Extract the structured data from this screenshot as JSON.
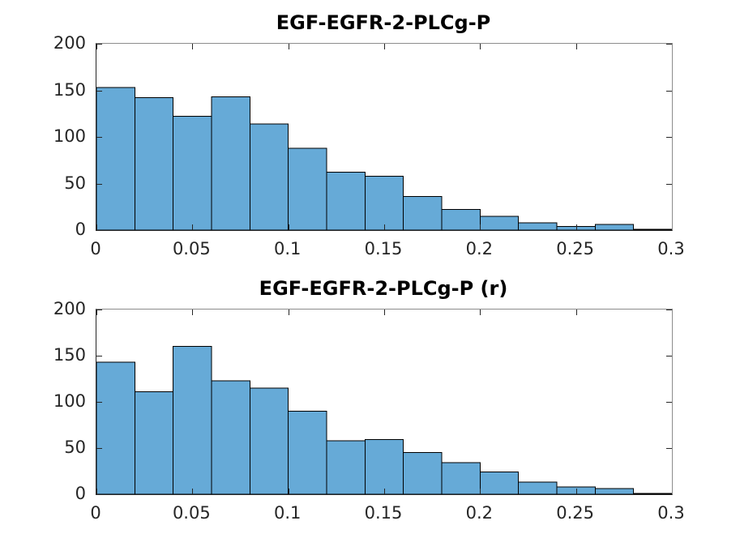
{
  "figure": {
    "background": "#ffffff",
    "bar_fill": "#66AAD7",
    "bar_edge": "#000000",
    "axis_dark": "#262626",
    "axis_light": "#8c8c8c",
    "tick_text_color": "#262626",
    "title_color": "#000000"
  },
  "chart_data": [
    {
      "type": "bar",
      "subtype": "histogram",
      "title": "EGF-EGFR-2-PLCg-P",
      "xlabel": "",
      "ylabel": "",
      "xlim": [
        0,
        0.3
      ],
      "ylim": [
        0,
        200
      ],
      "bin_start": 0,
      "bin_width": 0.02,
      "values": [
        153,
        142,
        122,
        143,
        114,
        88,
        62,
        58,
        36,
        22,
        15,
        8,
        4,
        6,
        1
      ],
      "xticks": [
        0,
        0.05,
        0.1,
        0.15,
        0.2,
        0.25,
        0.3
      ],
      "xtick_labels": [
        "0",
        "0.05",
        "0.1",
        "0.15",
        "0.2",
        "0.25",
        "0.3"
      ],
      "yticks": [
        0,
        50,
        100,
        150,
        200
      ],
      "ytick_labels": [
        "0",
        "50",
        "100",
        "150",
        "200"
      ],
      "grid": false,
      "legend": null,
      "box": true,
      "tick_direction": "in"
    },
    {
      "type": "bar",
      "subtype": "histogram",
      "title": "EGF-EGFR-2-PLCg-P (r)",
      "xlabel": "",
      "ylabel": "",
      "xlim": [
        0,
        0.3
      ],
      "ylim": [
        0,
        200
      ],
      "bin_start": 0,
      "bin_width": 0.02,
      "values": [
        143,
        111,
        160,
        123,
        115,
        90,
        58,
        59,
        45,
        34,
        24,
        13,
        8,
        6,
        1
      ],
      "xticks": [
        0,
        0.05,
        0.1,
        0.15,
        0.2,
        0.25,
        0.3
      ],
      "xtick_labels": [
        "0",
        "0.05",
        "0.1",
        "0.15",
        "0.2",
        "0.25",
        "0.3"
      ],
      "yticks": [
        0,
        50,
        100,
        150,
        200
      ],
      "ytick_labels": [
        "0",
        "50",
        "100",
        "150",
        "200"
      ],
      "grid": false,
      "legend": null,
      "box": true,
      "tick_direction": "in"
    }
  ]
}
